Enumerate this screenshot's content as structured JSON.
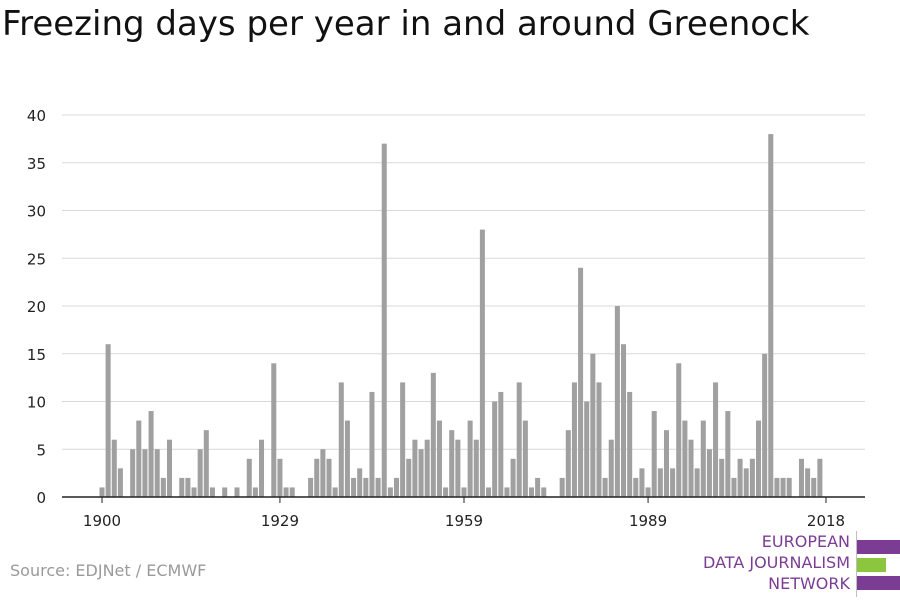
{
  "header": {
    "title": "Freezing days per year in and around Greenock"
  },
  "footer": {
    "source": "Source: EDJNet / ECMWF"
  },
  "logo": {
    "lines": [
      "EUROPEAN",
      "DATA JOURNALISM",
      "NETWORK"
    ],
    "colors": {
      "text": "#7b3d93",
      "bar_purple": "#7b3d93",
      "bar_green": "#8cc63f"
    }
  },
  "colors": {
    "bar": "#a0a0a0",
    "grid": "#d9d9d9",
    "axis": "#222222"
  },
  "chart_data": {
    "type": "bar",
    "title": "Freezing days per year in and around Greenock",
    "xlabel": "",
    "ylabel": "",
    "ylim": [
      0,
      40
    ],
    "yticks": [
      0,
      5,
      10,
      15,
      20,
      25,
      30,
      35,
      40
    ],
    "xticks": [
      1900,
      1929,
      1959,
      1989,
      2018
    ],
    "grid": true,
    "x": [
      1900,
      1901,
      1902,
      1903,
      1904,
      1905,
      1906,
      1907,
      1908,
      1909,
      1910,
      1911,
      1912,
      1913,
      1914,
      1915,
      1916,
      1917,
      1918,
      1919,
      1920,
      1921,
      1922,
      1923,
      1924,
      1925,
      1926,
      1927,
      1928,
      1929,
      1930,
      1931,
      1932,
      1933,
      1934,
      1935,
      1936,
      1937,
      1938,
      1939,
      1940,
      1941,
      1942,
      1943,
      1944,
      1945,
      1946,
      1947,
      1948,
      1949,
      1950,
      1951,
      1952,
      1953,
      1954,
      1955,
      1956,
      1957,
      1958,
      1959,
      1960,
      1961,
      1962,
      1963,
      1964,
      1965,
      1966,
      1967,
      1968,
      1969,
      1970,
      1971,
      1972,
      1973,
      1974,
      1975,
      1976,
      1977,
      1978,
      1979,
      1980,
      1981,
      1982,
      1983,
      1984,
      1985,
      1986,
      1987,
      1988,
      1989,
      1990,
      1991,
      1992,
      1993,
      1994,
      1995,
      1996,
      1997,
      1998,
      1999,
      2000,
      2001,
      2002,
      2003,
      2004,
      2005,
      2006,
      2007,
      2008,
      2009,
      2010,
      2011,
      2012,
      2013,
      2014,
      2015,
      2016,
      2017,
      2018
    ],
    "values": [
      1,
      16,
      6,
      3,
      0,
      5,
      8,
      5,
      9,
      5,
      2,
      6,
      0,
      2,
      2,
      1,
      5,
      7,
      1,
      0,
      1,
      0,
      1,
      0,
      4,
      1,
      6,
      0,
      14,
      4,
      1,
      1,
      0,
      0,
      2,
      4,
      5,
      4,
      1,
      12,
      8,
      2,
      3,
      2,
      11,
      2,
      37,
      1,
      2,
      12,
      4,
      6,
      5,
      6,
      13,
      8,
      1,
      7,
      6,
      1,
      8,
      6,
      28,
      1,
      10,
      11,
      1,
      4,
      12,
      8,
      1,
      2,
      1,
      0,
      0,
      2,
      7,
      12,
      24,
      10,
      15,
      12,
      2,
      6,
      20,
      16,
      11,
      2,
      3,
      1,
      9,
      3,
      7,
      3,
      14,
      8,
      6,
      3,
      8,
      5,
      12,
      4,
      9,
      2,
      4,
      3,
      4,
      8,
      15,
      38,
      2,
      2,
      2,
      0,
      4,
      3,
      2,
      4,
      0
    ]
  }
}
